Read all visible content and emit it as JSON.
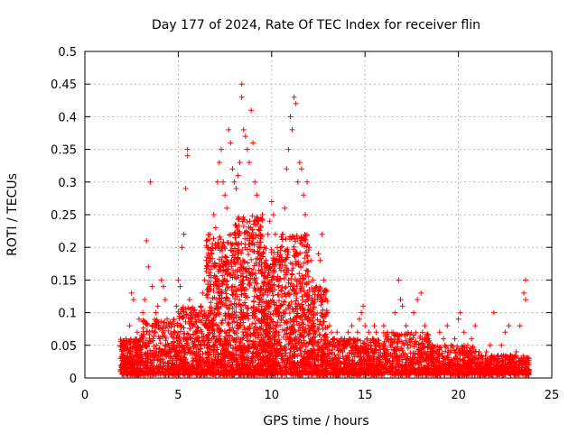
{
  "chart_data": {
    "type": "scatter",
    "title": "Day 177 of 2024, Rate Of TEC Index for receiver flin",
    "xlabel": "GPS time / hours",
    "ylabel": "ROTI / TECUs",
    "xlim": [
      0,
      25
    ],
    "ylim": [
      0,
      0.5
    ],
    "xticks": [
      0,
      5,
      10,
      15,
      20,
      25
    ],
    "yticks": [
      0,
      0.05,
      0.1,
      0.15,
      0.2,
      0.25,
      0.3,
      0.35,
      0.4,
      0.45,
      0.5
    ],
    "xtick_labels": [
      "0",
      "5",
      "10",
      "15",
      "20",
      "25"
    ],
    "ytick_labels": [
      "0",
      "0.05",
      "0.1",
      "0.15",
      "0.2",
      "0.25",
      "0.3",
      "0.35",
      "0.4",
      "0.45",
      "0.5"
    ],
    "grid": true,
    "marker": "+",
    "color": "#ff0000",
    "series": [
      {
        "name": "ROTI",
        "points": [
          [
            1.9,
            0.03
          ],
          [
            2.0,
            0.02
          ],
          [
            2.1,
            0.045
          ],
          [
            2.2,
            0.06
          ],
          [
            2.3,
            0.03
          ],
          [
            2.4,
            0.08
          ],
          [
            2.5,
            0.13
          ],
          [
            2.6,
            0.12
          ],
          [
            2.7,
            0.05
          ],
          [
            2.8,
            0.07
          ],
          [
            2.9,
            0.09
          ],
          [
            3.0,
            0.06
          ],
          [
            3.1,
            0.1
          ],
          [
            3.2,
            0.12
          ],
          [
            3.3,
            0.21
          ],
          [
            3.4,
            0.17
          ],
          [
            3.5,
            0.3
          ],
          [
            3.6,
            0.14
          ],
          [
            3.7,
            0.08
          ],
          [
            3.8,
            0.1
          ],
          [
            3.9,
            0.11
          ],
          [
            4.0,
            0.06
          ],
          [
            4.1,
            0.15
          ],
          [
            4.2,
            0.14
          ],
          [
            4.3,
            0.12
          ],
          [
            4.4,
            0.09
          ],
          [
            4.5,
            0.05
          ],
          [
            4.6,
            0.04
          ],
          [
            4.8,
            0.08
          ],
          [
            4.9,
            0.11
          ],
          [
            5.0,
            0.15
          ],
          [
            5.1,
            0.14
          ],
          [
            5.2,
            0.2
          ],
          [
            5.3,
            0.22
          ],
          [
            5.4,
            0.29
          ],
          [
            5.5,
            0.34
          ],
          [
            5.5,
            0.35
          ],
          [
            5.6,
            0.12
          ],
          [
            5.7,
            0.1
          ],
          [
            5.8,
            0.08
          ],
          [
            5.9,
            0.05
          ],
          [
            6.0,
            0.07
          ],
          [
            6.1,
            0.1
          ],
          [
            6.2,
            0.11
          ],
          [
            6.3,
            0.13
          ],
          [
            6.4,
            0.15
          ],
          [
            6.5,
            0.18
          ],
          [
            6.6,
            0.2
          ],
          [
            6.7,
            0.22
          ],
          [
            6.8,
            0.19
          ],
          [
            6.9,
            0.25
          ],
          [
            7.0,
            0.23
          ],
          [
            7.1,
            0.3
          ],
          [
            7.2,
            0.33
          ],
          [
            7.3,
            0.35
          ],
          [
            7.4,
            0.3
          ],
          [
            7.5,
            0.28
          ],
          [
            7.6,
            0.26
          ],
          [
            7.7,
            0.38
          ],
          [
            7.8,
            0.36
          ],
          [
            7.9,
            0.32
          ],
          [
            8.0,
            0.3
          ],
          [
            8.1,
            0.29
          ],
          [
            8.2,
            0.31
          ],
          [
            8.3,
            0.33
          ],
          [
            8.4,
            0.45
          ],
          [
            8.4,
            0.43
          ],
          [
            8.5,
            0.38
          ],
          [
            8.6,
            0.37
          ],
          [
            8.7,
            0.35
          ],
          [
            8.8,
            0.33
          ],
          [
            8.9,
            0.41
          ],
          [
            9.0,
            0.36
          ],
          [
            9.1,
            0.3
          ],
          [
            9.2,
            0.28
          ],
          [
            9.3,
            0.24
          ],
          [
            9.4,
            0.22
          ],
          [
            9.5,
            0.25
          ],
          [
            9.6,
            0.2
          ],
          [
            9.7,
            0.18
          ],
          [
            9.8,
            0.22
          ],
          [
            9.9,
            0.24
          ],
          [
            10.0,
            0.27
          ],
          [
            10.1,
            0.25
          ],
          [
            10.2,
            0.22
          ],
          [
            10.3,
            0.2
          ],
          [
            10.4,
            0.18
          ],
          [
            10.5,
            0.2
          ],
          [
            10.6,
            0.22
          ],
          [
            10.7,
            0.26
          ],
          [
            10.8,
            0.32
          ],
          [
            10.9,
            0.35
          ],
          [
            11.0,
            0.4
          ],
          [
            11.1,
            0.38
          ],
          [
            11.2,
            0.43
          ],
          [
            11.3,
            0.42
          ],
          [
            11.4,
            0.3
          ],
          [
            11.5,
            0.33
          ],
          [
            11.6,
            0.32
          ],
          [
            11.7,
            0.28
          ],
          [
            11.8,
            0.25
          ],
          [
            11.9,
            0.3
          ],
          [
            12.0,
            0.2
          ],
          [
            12.1,
            0.18
          ],
          [
            12.2,
            0.15
          ],
          [
            12.3,
            0.12
          ],
          [
            12.4,
            0.14
          ],
          [
            12.5,
            0.19
          ],
          [
            12.6,
            0.18
          ],
          [
            12.7,
            0.22
          ],
          [
            12.8,
            0.15
          ],
          [
            12.9,
            0.12
          ],
          [
            13.0,
            0.1
          ],
          [
            13.1,
            0.08
          ],
          [
            13.2,
            0.07
          ],
          [
            13.3,
            0.06
          ],
          [
            13.4,
            0.05
          ],
          [
            13.5,
            0.07
          ],
          [
            13.6,
            0.05
          ],
          [
            13.7,
            0.06
          ],
          [
            13.8,
            0.04
          ],
          [
            13.9,
            0.06
          ],
          [
            14.0,
            0.05
          ],
          [
            14.1,
            0.07
          ],
          [
            14.2,
            0.06
          ],
          [
            14.3,
            0.08
          ],
          [
            14.4,
            0.06
          ],
          [
            14.5,
            0.05
          ],
          [
            14.6,
            0.07
          ],
          [
            14.7,
            0.09
          ],
          [
            14.8,
            0.1
          ],
          [
            14.9,
            0.11
          ],
          [
            15.0,
            0.08
          ],
          [
            15.1,
            0.06
          ],
          [
            15.2,
            0.07
          ],
          [
            15.3,
            0.05
          ],
          [
            15.4,
            0.06
          ],
          [
            15.5,
            0.08
          ],
          [
            15.6,
            0.07
          ],
          [
            15.8,
            0.05
          ],
          [
            16.0,
            0.08
          ],
          [
            16.2,
            0.07
          ],
          [
            16.4,
            0.06
          ],
          [
            16.6,
            0.1
          ],
          [
            16.8,
            0.15
          ],
          [
            16.9,
            0.12
          ],
          [
            17.0,
            0.11
          ],
          [
            17.2,
            0.08
          ],
          [
            17.4,
            0.06
          ],
          [
            17.6,
            0.1
          ],
          [
            17.8,
            0.12
          ],
          [
            18.0,
            0.13
          ],
          [
            18.2,
            0.08
          ],
          [
            18.4,
            0.06
          ],
          [
            18.6,
            0.05
          ],
          [
            18.8,
            0.04
          ],
          [
            19.0,
            0.07
          ],
          [
            19.2,
            0.06
          ],
          [
            19.4,
            0.08
          ],
          [
            19.6,
            0.05
          ],
          [
            19.8,
            0.06
          ],
          [
            20.0,
            0.09
          ],
          [
            20.1,
            0.1
          ],
          [
            20.3,
            0.07
          ],
          [
            20.5,
            0.05
          ],
          [
            20.7,
            0.06
          ],
          [
            20.9,
            0.08
          ],
          [
            21.1,
            0.04
          ],
          [
            21.3,
            0.03
          ],
          [
            21.5,
            0.04
          ],
          [
            21.7,
            0.05
          ],
          [
            21.9,
            0.1
          ],
          [
            22.1,
            0.03
          ],
          [
            22.3,
            0.05
          ],
          [
            22.5,
            0.07
          ],
          [
            22.7,
            0.08
          ],
          [
            22.9,
            0.03
          ],
          [
            23.1,
            0.04
          ],
          [
            23.3,
            0.08
          ],
          [
            23.5,
            0.13
          ],
          [
            23.6,
            0.15
          ],
          [
            23.6,
            0.12
          ],
          [
            23.7,
            0.02
          ],
          [
            23.7,
            0.03
          ]
        ],
        "dense_bands": [
          {
            "x": [
              1.9,
              3.0
            ],
            "y": [
              0.005,
              0.06
            ],
            "count": 260
          },
          {
            "x": [
              3.0,
              5.0
            ],
            "y": [
              0.005,
              0.09
            ],
            "count": 380
          },
          {
            "x": [
              5.0,
              6.5
            ],
            "y": [
              0.005,
              0.11
            ],
            "count": 340
          },
          {
            "x": [
              6.5,
              8.0
            ],
            "y": [
              0.005,
              0.22
            ],
            "count": 560
          },
          {
            "x": [
              8.0,
              9.5
            ],
            "y": [
              0.005,
              0.25
            ],
            "count": 620
          },
          {
            "x": [
              9.5,
              10.5
            ],
            "y": [
              0.005,
              0.2
            ],
            "count": 430
          },
          {
            "x": [
              10.5,
              12.0
            ],
            "y": [
              0.005,
              0.22
            ],
            "count": 500
          },
          {
            "x": [
              12.0,
              13.0
            ],
            "y": [
              0.005,
              0.14
            ],
            "count": 300
          },
          {
            "x": [
              13.0,
              16.0
            ],
            "y": [
              0.005,
              0.06
            ],
            "count": 520
          },
          {
            "x": [
              16.0,
              18.5
            ],
            "y": [
              0.005,
              0.07
            ],
            "count": 420
          },
          {
            "x": [
              18.5,
              21.0
            ],
            "y": [
              0.005,
              0.05
            ],
            "count": 400
          },
          {
            "x": [
              21.0,
              23.8
            ],
            "y": [
              0.005,
              0.035
            ],
            "count": 440
          }
        ]
      }
    ]
  }
}
